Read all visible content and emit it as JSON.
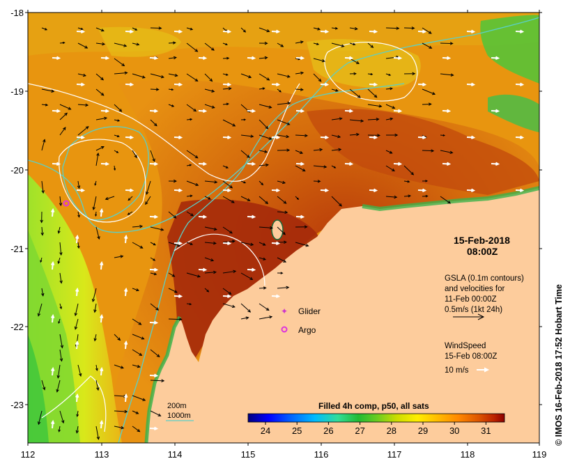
{
  "map": {
    "date_label": "15-Feb-2018",
    "time_label": "08:00Z",
    "credit": "© IMOS 16-Feb-2018 17:52 Hobart Time",
    "lat_ticks": [
      "-18",
      "-19",
      "-20",
      "-21",
      "-22",
      "-23"
    ],
    "lon_ticks": [
      "112",
      "113",
      "114",
      "115",
      "116",
      "117",
      "118",
      "119"
    ],
    "legend_gsla": {
      "lines": [
        "GSLA (0.1m contours)",
        "and velocities for",
        "11-Feb 00:00Z",
        "0.5m/s (1kt 24h)"
      ]
    },
    "legend_wind": {
      "lines": [
        "WindSpeed",
        "15-Feb 08:00Z",
        "10 m/s"
      ]
    },
    "markers": [
      {
        "label": "Glider",
        "symbol": "+",
        "color": "#cc33cc"
      },
      {
        "label": "Argo",
        "symbol": "o",
        "color": "#dd33dd"
      }
    ],
    "isobaths": [
      {
        "label": "200m",
        "color": "#5ad0c8"
      },
      {
        "label": "1000m",
        "color": "#5ad0c8"
      }
    ],
    "colorbar": {
      "title": "Filled 4h comp, p50, all sats",
      "ticks": [
        "24",
        "25",
        "26",
        "27",
        "28",
        "29",
        "30",
        "31"
      ],
      "colors": [
        "#00007f",
        "#0000ff",
        "#0066ff",
        "#00bbff",
        "#33dd99",
        "#22bb33",
        "#66cc22",
        "#ccdd00",
        "#ffee00",
        "#ffbb00",
        "#ff8800",
        "#dd5500",
        "#bb2200",
        "#8b0000"
      ]
    }
  }
}
